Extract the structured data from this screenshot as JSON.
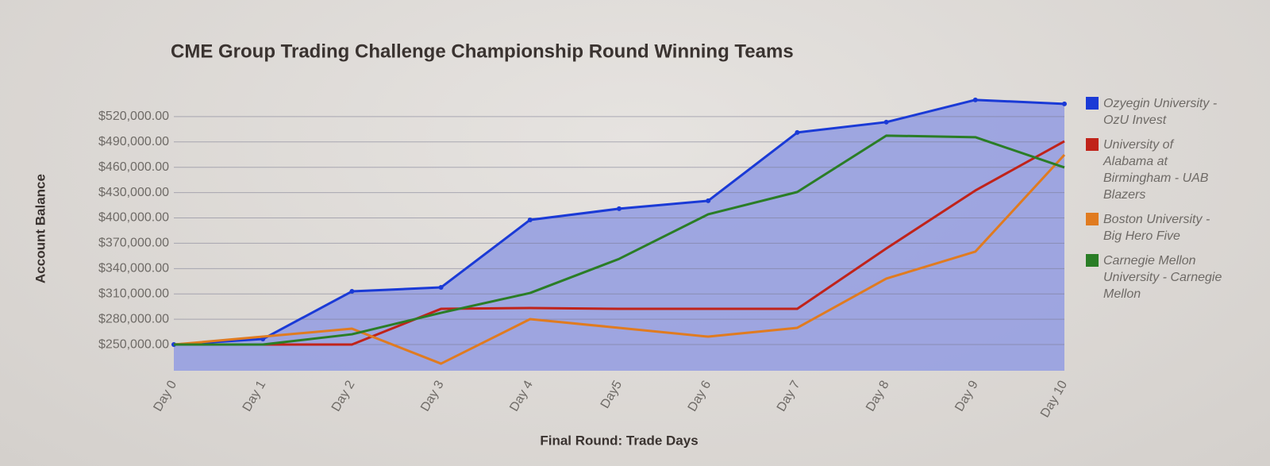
{
  "chart_data": {
    "type": "line",
    "title": "CME Group Trading Challenge Championship Round Winning Teams",
    "x_label": "Final Round: Trade Days",
    "y_label": "Account Balance",
    "categories": [
      "Day 0",
      "Day 1",
      "Day 2",
      "Day 3",
      "Day 4",
      "Day5",
      "Day 6",
      "Day 7",
      "Day 8",
      "Day 9",
      "Day 10"
    ],
    "series": [
      {
        "name": "Ozyegin University - OzU Invest",
        "color": "#1a3ad6",
        "area": true,
        "markers": true,
        "values": [
          250000,
          256600,
          313000,
          317700,
          397700,
          410900,
          420300,
          501200,
          513500,
          539800,
          535100
        ]
      },
      {
        "name": "University of Alabama at Birmingham - UAB Blazers",
        "color": "#c0231a",
        "values": [
          250000,
          250000,
          250000,
          292300,
          293300,
          292300,
          292300,
          292300,
          363800,
          432500,
          490800
        ]
      },
      {
        "name": "Boston University - Big Hero Five",
        "color": "#e07b20",
        "values": [
          250000,
          259400,
          268800,
          227400,
          280100,
          269800,
          259400,
          269800,
          328100,
          360100,
          474800
        ]
      },
      {
        "name": "Carnegie Mellon University - Carnegie Mellon",
        "color": "#2a7d26",
        "values": [
          250000,
          250000,
          262200,
          287600,
          311100,
          351500,
          404300,
          430700,
          497500,
          495600,
          459800
        ]
      }
    ],
    "ylim": [
      219000,
      550000
    ],
    "yticks": [
      {
        "value": 250000,
        "label": "$250,000.00"
      },
      {
        "value": 280000,
        "label": "$280,000.00"
      },
      {
        "value": 310000,
        "label": "$310,000.00"
      },
      {
        "value": 340000,
        "label": "$340,000.00"
      },
      {
        "value": 370000,
        "label": "$370,000.00"
      },
      {
        "value": 400000,
        "label": "$400,000.00"
      },
      {
        "value": 430000,
        "label": "$430,000.00"
      },
      {
        "value": 460000,
        "label": "$460,000.00"
      },
      {
        "value": 490000,
        "label": "$490,000.00"
      },
      {
        "value": 520000,
        "label": "$520,000.00"
      }
    ],
    "grid": true,
    "legend": "right"
  }
}
